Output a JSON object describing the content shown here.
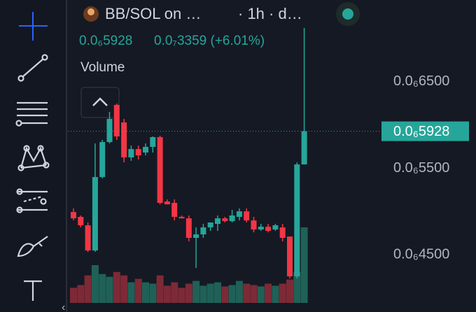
{
  "chart_data": {
    "type": "candlestick",
    "title": "BB/SOL on …",
    "subtitle": "· 1h · d…",
    "last_price_label": "0.0₆5928",
    "last_price": 5.928e-07,
    "change_label": "0.0₇3359 (+6.01%)",
    "volume_label": "Volume",
    "ylim": [
      3.836e-07,
      7.447e-07
    ],
    "yticks": [
      {
        "value": 6.5e-07,
        "label": "0.0₆6500"
      },
      {
        "value": 5.5e-07,
        "label": "0.0₆5500"
      },
      {
        "value": 4.5e-07,
        "label": "0.0₆4500"
      }
    ],
    "up_color": "#26a69a",
    "down_color": "#f23645",
    "up_volume_color": "#1f6157",
    "down_volume_color": "#7d2a36",
    "open": [
      4.993e-07,
      4.937e-07,
      4.839e-07,
      4.548e-07,
      5.398e-07,
      5.803e-07,
      6.233e-07,
      6.03e-07,
      5.625e-07,
      5.722e-07,
      5.682e-07,
      5.747e-07,
      5.86e-07,
      5.115e-07,
      5.099e-07,
      4.937e-07,
      4.92e-07,
      4.694e-07,
      4.734e-07,
      4.815e-07,
      4.856e-07,
      4.92e-07,
      4.888e-07,
      4.937e-07,
      5.001e-07,
      4.896e-07,
      4.791e-07,
      4.823e-07,
      4.791e-07,
      4.815e-07,
      4.71e-07,
      4.248e-07,
      5.544e-07
    ],
    "high": [
      5.034e-07,
      4.953e-07,
      4.872e-07,
      5.787e-07,
      5.828e-07,
      6.152e-07,
      6.249e-07,
      6.071e-07,
      5.763e-07,
      5.763e-07,
      5.787e-07,
      5.868e-07,
      5.876e-07,
      5.139e-07,
      5.139e-07,
      4.953e-07,
      4.953e-07,
      4.815e-07,
      4.856e-07,
      4.872e-07,
      4.953e-07,
      4.937e-07,
      5.018e-07,
      5.034e-07,
      5.034e-07,
      4.937e-07,
      4.856e-07,
      4.856e-07,
      4.856e-07,
      4.856e-07,
      4.71e-07,
      5.568e-07,
      7.124e-07
    ],
    "low": [
      4.896e-07,
      4.815e-07,
      4.532e-07,
      4.532e-07,
      5.382e-07,
      5.787e-07,
      5.828e-07,
      5.568e-07,
      5.585e-07,
      5.601e-07,
      5.649e-07,
      5.682e-07,
      5.082e-07,
      5.082e-07,
      4.896e-07,
      4.92e-07,
      4.653e-07,
      4.345e-07,
      4.694e-07,
      4.775e-07,
      4.775e-07,
      4.872e-07,
      4.872e-07,
      4.896e-07,
      4.872e-07,
      4.758e-07,
      4.775e-07,
      4.758e-07,
      4.775e-07,
      4.653e-07,
      4.224e-07,
      4.224e-07,
      5.544e-07
    ],
    "close": [
      4.92e-07,
      4.839e-07,
      4.548e-07,
      5.398e-07,
      5.803e-07,
      6.071e-07,
      5.868e-07,
      5.625e-07,
      5.722e-07,
      5.649e-07,
      5.747e-07,
      5.86e-07,
      5.099e-07,
      5.082e-07,
      4.937e-07,
      4.92e-07,
      4.694e-07,
      4.734e-07,
      4.815e-07,
      4.872e-07,
      4.92e-07,
      4.888e-07,
      4.953e-07,
      5.001e-07,
      4.896e-07,
      4.791e-07,
      4.823e-07,
      4.775e-07,
      4.84e-07,
      4.694e-07,
      4.248e-07,
      5.544e-07,
      5.928e-07
    ],
    "volume": [
      22,
      26,
      40,
      55,
      42,
      38,
      45,
      40,
      30,
      35,
      30,
      28,
      40,
      25,
      30,
      22,
      28,
      32,
      25,
      28,
      30,
      24,
      26,
      32,
      28,
      26,
      24,
      28,
      25,
      28,
      34,
      45,
      110
    ]
  }
}
